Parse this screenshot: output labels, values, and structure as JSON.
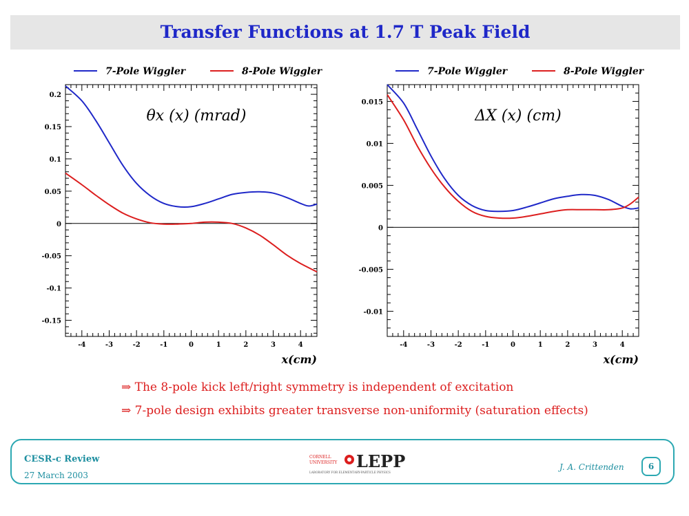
{
  "title": "Transfer Functions at 1.7 T Peak Field",
  "bullets": [
    "⇒ The 8-pole kick left/right symmetry is independent of excitation",
    "⇒ 7-pole design exhibits greater transverse non-uniformity (saturation effects)"
  ],
  "footer": {
    "review": "CESR-c Review",
    "date": "27 March 2003",
    "author": "J. A. Crittenden",
    "page": "6",
    "logo_org_line1": "CORNELL",
    "logo_org_line2": "UNIVERSITY",
    "logo_name": "LEPP",
    "logo_sub": "LABORATORY FOR ELEMENTARY-PARTICLE PHYSICS"
  },
  "colors": {
    "series1": "#1f28c8",
    "series2": "#dc1e1e",
    "title": "#1f28c8",
    "footer": "#1e8fa0"
  },
  "chart_data": [
    {
      "type": "line",
      "annotation": "θx (x)  (mrad)",
      "xlabel": "x(cm)",
      "xlim": [
        -4.6,
        4.6
      ],
      "ylim": [
        -0.175,
        0.215
      ],
      "xticks": [
        -4,
        -3,
        -2,
        -1,
        0,
        1,
        2,
        3,
        4
      ],
      "yticks": [
        -0.15,
        -0.1,
        -0.05,
        0,
        0.05,
        0.1,
        0.15,
        0.2
      ],
      "ytick_labels": [
        "-0.15",
        "-0.1",
        "-0.05",
        "0",
        "0.05",
        "0.1",
        "0.15",
        "0.2"
      ],
      "legend_placement": "top",
      "series": [
        {
          "name": "7-Pole Wiggler",
          "color": "#1f28c8",
          "x": [
            -4.6,
            -4.0,
            -3.5,
            -3.0,
            -2.5,
            -2.0,
            -1.5,
            -1.0,
            -0.5,
            0.0,
            0.5,
            1.0,
            1.5,
            2.0,
            2.5,
            3.0,
            3.5,
            4.0,
            4.3,
            4.6
          ],
          "y": [
            0.213,
            0.19,
            0.16,
            0.125,
            0.09,
            0.062,
            0.043,
            0.031,
            0.026,
            0.026,
            0.031,
            0.038,
            0.045,
            0.048,
            0.049,
            0.047,
            0.04,
            0.031,
            0.027,
            0.03
          ]
        },
        {
          "name": "8-Pole Wiggler",
          "color": "#dc1e1e",
          "x": [
            -4.6,
            -4.0,
            -3.5,
            -3.0,
            -2.5,
            -2.0,
            -1.5,
            -1.0,
            -0.5,
            0.0,
            0.5,
            1.0,
            1.5,
            2.0,
            2.5,
            3.0,
            3.5,
            4.0,
            4.6
          ],
          "y": [
            0.078,
            0.06,
            0.044,
            0.029,
            0.016,
            0.007,
            0.001,
            -0.001,
            -0.001,
            0.0,
            0.002,
            0.002,
            0.0,
            -0.007,
            -0.018,
            -0.033,
            -0.049,
            -0.062,
            -0.075
          ]
        }
      ]
    },
    {
      "type": "line",
      "annotation": "ΔX (x) (cm)",
      "xlabel": "x(cm)",
      "xlim": [
        -4.6,
        4.6
      ],
      "ylim": [
        -0.013,
        0.017
      ],
      "xticks": [
        -4,
        -3,
        -2,
        -1,
        0,
        1,
        2,
        3,
        4
      ],
      "yticks": [
        -0.01,
        -0.005,
        0,
        0.005,
        0.01,
        0.015
      ],
      "ytick_labels": [
        "-0.01",
        "-0.005",
        "0",
        "0.005",
        "0.01",
        "0.015"
      ],
      "legend_placement": "top",
      "series": [
        {
          "name": "7-Pole Wiggler",
          "color": "#1f28c8",
          "x": [
            -4.6,
            -4.0,
            -3.5,
            -3.0,
            -2.5,
            -2.0,
            -1.5,
            -1.0,
            -0.5,
            0.0,
            0.5,
            1.0,
            1.5,
            2.0,
            2.5,
            3.0,
            3.5,
            4.0,
            4.3,
            4.6
          ],
          "y": [
            0.017,
            0.0148,
            0.0117,
            0.0085,
            0.0058,
            0.0038,
            0.0026,
            0.002,
            0.0019,
            0.002,
            0.0024,
            0.0029,
            0.0034,
            0.0037,
            0.0039,
            0.0038,
            0.0033,
            0.0025,
            0.0022,
            0.0023
          ]
        },
        {
          "name": "8-Pole Wiggler",
          "color": "#dc1e1e",
          "x": [
            -4.6,
            -4.0,
            -3.5,
            -3.0,
            -2.5,
            -2.0,
            -1.5,
            -1.0,
            -0.5,
            0.0,
            0.5,
            1.0,
            1.5,
            2.0,
            2.5,
            3.0,
            3.5,
            4.0,
            4.3,
            4.6
          ],
          "y": [
            0.0158,
            0.0128,
            0.0097,
            0.007,
            0.0048,
            0.0031,
            0.0019,
            0.0013,
            0.0011,
            0.0011,
            0.0013,
            0.0016,
            0.0019,
            0.0021,
            0.0021,
            0.0021,
            0.0021,
            0.0023,
            0.0028,
            0.0036
          ]
        }
      ]
    }
  ]
}
